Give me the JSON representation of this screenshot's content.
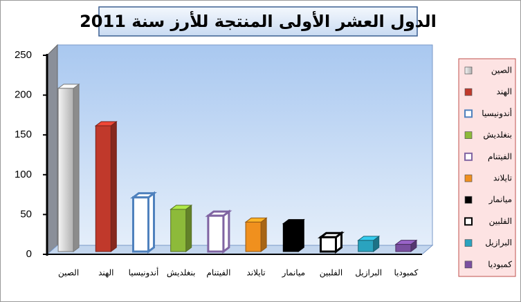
{
  "chart_data": {
    "type": "bar3d",
    "title": "الدول العشر الأولى المنتجة للأرز سنة 2011",
    "categories": [
      "الصين",
      "الهند",
      "أندونيسيا",
      "بنغلديش",
      "الفيتنام",
      "تايلاند",
      "ميانمار",
      "الفلبين",
      "البرازيل",
      "كمبوديا"
    ],
    "values": [
      205,
      158,
      68,
      53,
      45,
      37,
      35,
      18,
      14,
      9
    ],
    "colors": [
      "#c8c8c8",
      "#c0392b",
      "#4f81bd",
      "#8dba3a",
      "#8064a2",
      "#f0901e",
      "#000000",
      "#000000",
      "#2aa3bf",
      "#7a4fa0"
    ],
    "outline": [
      false,
      false,
      true,
      false,
      true,
      false,
      false,
      true,
      false,
      false
    ],
    "ylim": [
      0,
      250
    ],
    "yticks": [
      0,
      50,
      100,
      150,
      200,
      250
    ],
    "legend": "right"
  }
}
